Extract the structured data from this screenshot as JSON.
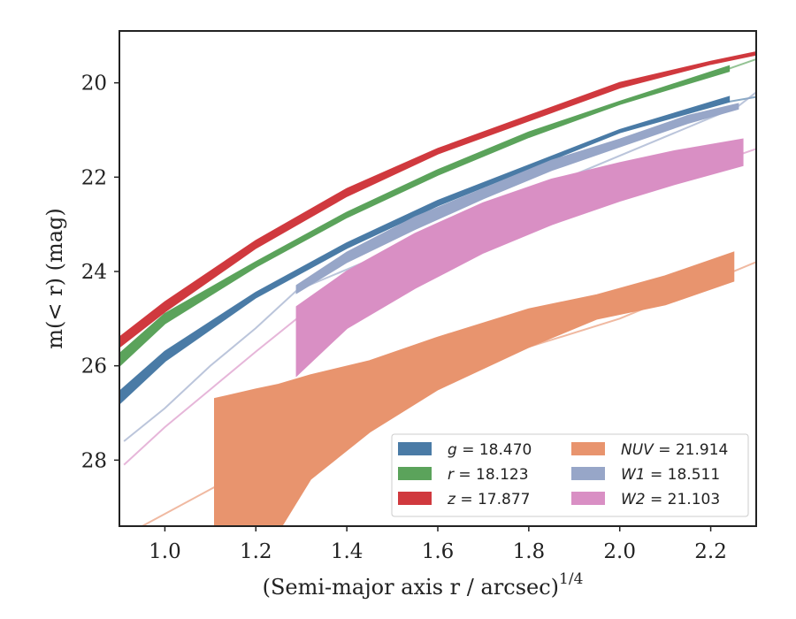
{
  "chart_data": {
    "type": "line",
    "xlabel": "(Semi-major axis r / arcsec)",
    "xlabel_sup": "1/4",
    "ylabel": "m(< r) (mag)",
    "xlim": [
      0.9,
      2.3
    ],
    "ylim": [
      29.4,
      18.9
    ],
    "y_inverted": true,
    "xticks": [
      1.0,
      1.2,
      1.4,
      1.6,
      1.8,
      2.0,
      2.2
    ],
    "xtick_labels": [
      "1.0",
      "1.2",
      "1.4",
      "1.6",
      "1.8",
      "2.0",
      "2.2"
    ],
    "yticks": [
      20,
      22,
      24,
      26,
      28
    ],
    "ytick_labels": [
      "20",
      "22",
      "24",
      "26",
      "28"
    ],
    "grid": false,
    "legend_position": "lower-right",
    "series": [
      {
        "name": "g = 18.470",
        "band": "g",
        "total_mag": "18.470",
        "color": "#4a7ba6",
        "band_x": [
          0.9,
          1.0,
          1.2,
          1.4,
          1.6,
          1.8,
          2.0,
          2.24
        ],
        "band_lower": [
          26.55,
          25.7,
          24.45,
          23.4,
          22.5,
          21.75,
          21.0,
          20.3
        ],
        "band_upper": [
          26.8,
          25.9,
          24.55,
          23.5,
          22.6,
          21.82,
          21.05,
          20.4
        ],
        "model_x": [
          2.24,
          2.3
        ],
        "model_y": [
          20.4,
          20.3
        ]
      },
      {
        "name": "r = 18.123",
        "band": "r",
        "total_mag": "18.123",
        "color": "#5ba35b",
        "band_x": [
          0.9,
          1.0,
          1.2,
          1.4,
          1.6,
          1.8,
          2.0,
          2.24
        ],
        "band_lower": [
          25.75,
          24.9,
          23.8,
          22.75,
          21.85,
          21.05,
          20.4,
          19.65
        ],
        "band_upper": [
          26.0,
          25.1,
          23.9,
          22.85,
          21.95,
          21.15,
          20.45,
          19.75
        ],
        "model_x": [
          2.24,
          2.3
        ],
        "model_y": [
          19.7,
          19.5
        ]
      },
      {
        "name": "z = 17.877",
        "band": "z",
        "total_mag": "17.877",
        "color": "#d0393e",
        "band_x": [
          0.9,
          1.0,
          1.2,
          1.4,
          1.6,
          1.8,
          2.0,
          2.2,
          2.3
        ],
        "band_lower": [
          25.4,
          24.65,
          23.35,
          22.25,
          21.4,
          20.7,
          20.0,
          19.55,
          19.35
        ],
        "band_upper": [
          25.6,
          24.85,
          23.5,
          22.4,
          21.5,
          20.8,
          20.1,
          19.6,
          19.4
        ],
        "model_x": [],
        "model_y": []
      },
      {
        "name": "NUV = 21.914",
        "band": "NUV",
        "total_mag": "21.914",
        "color": "#e8946e",
        "band_x": [
          1.11,
          1.2,
          1.25,
          1.32,
          1.45,
          1.6,
          1.8,
          1.95,
          2.1,
          2.25
        ],
        "band_lower": [
          29.5,
          29.5,
          29.5,
          28.4,
          27.4,
          26.5,
          25.6,
          25.0,
          24.7,
          24.2
        ],
        "band_upper": [
          26.7,
          26.5,
          26.4,
          26.2,
          25.9,
          25.4,
          24.8,
          24.5,
          24.1,
          23.6
        ],
        "model_x": [
          0.95,
          1.2,
          1.4,
          1.6,
          1.8,
          2.0,
          2.2,
          2.3
        ],
        "model_y": [
          29.4,
          28.1,
          27.1,
          26.3,
          25.6,
          25.0,
          24.2,
          23.8
        ]
      },
      {
        "name": "W1 = 18.511",
        "band": "W1",
        "total_mag": "18.511",
        "color": "#97a6c8",
        "band_x": [
          1.29,
          1.4,
          1.55,
          1.7,
          1.85,
          2.0,
          2.15,
          2.26
        ],
        "band_lower": [
          24.45,
          23.8,
          23.1,
          22.45,
          21.85,
          21.35,
          20.85,
          20.55
        ],
        "band_upper": [
          24.3,
          23.6,
          22.85,
          22.25,
          21.65,
          21.2,
          20.7,
          20.45
        ],
        "model_x": [
          0.91,
          1.0,
          1.1,
          1.2,
          1.29,
          2.26,
          2.3
        ],
        "model_y": [
          27.6,
          26.9,
          26.0,
          25.2,
          24.4,
          20.5,
          20.2
        ]
      },
      {
        "name": "W2 = 21.103",
        "band": "W2",
        "total_mag": "21.103",
        "color": "#d98fc4",
        "band_x": [
          1.29,
          1.4,
          1.55,
          1.7,
          1.85,
          2.0,
          2.12,
          2.27
        ],
        "band_lower": [
          26.2,
          25.2,
          24.35,
          23.6,
          23.0,
          22.5,
          22.15,
          21.75
        ],
        "band_upper": [
          24.75,
          24.0,
          23.2,
          22.55,
          22.05,
          21.7,
          21.45,
          21.2
        ],
        "model_x": [
          0.91,
          1.0,
          1.1,
          1.2,
          1.29,
          2.27,
          2.3
        ],
        "model_y": [
          28.1,
          27.3,
          26.5,
          25.7,
          25.0,
          21.5,
          21.4
        ]
      }
    ]
  }
}
